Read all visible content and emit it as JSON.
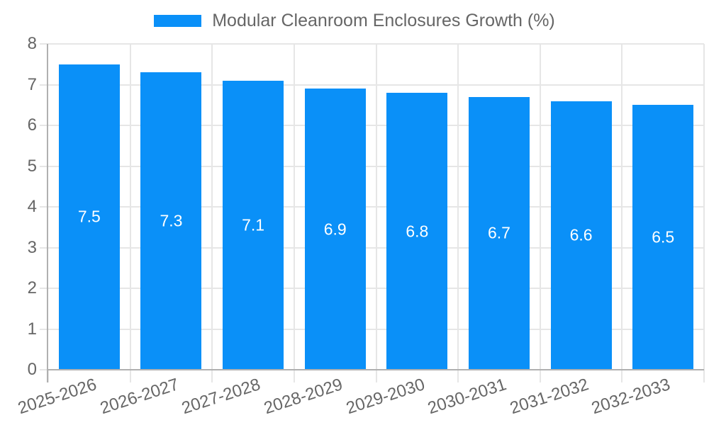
{
  "chart_data": {
    "type": "bar",
    "title": "Modular Cleanroom Enclosures Growth (%)",
    "categories": [
      "2025-2026",
      "2026-2027",
      "2027-2028",
      "2028-2029",
      "2029-2030",
      "2030-2031",
      "2031-2032",
      "2032-2033"
    ],
    "values": [
      7.5,
      7.3,
      7.1,
      6.9,
      6.8,
      6.7,
      6.6,
      6.5
    ],
    "value_labels": [
      "7.5",
      "7.3",
      "7.1",
      "6.9",
      "6.8",
      "6.7",
      "6.6",
      "6.5"
    ],
    "xlabel": "",
    "ylabel": "",
    "ylim": [
      0,
      8
    ],
    "ytick_step": 1,
    "yticks": [
      0,
      1,
      2,
      3,
      4,
      5,
      6,
      7,
      8
    ],
    "grid": true,
    "legend_position": "top",
    "x_label_rotation_deg": -18,
    "colors": {
      "bar": "#0A90F8",
      "grid": "#E6E6E6",
      "axis": "#B0B0B0",
      "tick_text": "#666666",
      "legend_text": "#666666",
      "value_label": "#FFFFFF",
      "background": "#FFFFFF"
    }
  }
}
